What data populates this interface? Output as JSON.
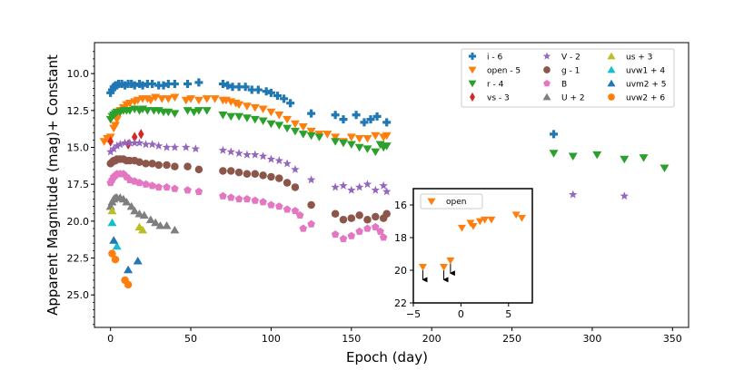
{
  "chart_data": [
    {
      "type": "scatter",
      "title": "",
      "xlabel": "Epoch (day)",
      "ylabel": "Apparent Magnitude (mag)+ Constant",
      "xlim": [
        -10,
        360
      ],
      "ylim": [
        27.2,
        7.9
      ],
      "y_inverted": true,
      "x_ticks": [
        0,
        50,
        100,
        150,
        200,
        250,
        300,
        350
      ],
      "y_ticks": [
        10.0,
        12.5,
        15.0,
        17.5,
        20.0,
        22.5,
        25.0
      ],
      "x_tick_labels": [
        "0",
        "50",
        "100",
        "150",
        "200",
        "250",
        "300",
        "350"
      ],
      "y_tick_labels": [
        "10.0",
        "12.5",
        "15.0",
        "17.5",
        "20.0",
        "22.5",
        "25.0"
      ],
      "legend_position": "top-right",
      "series": [
        {
          "name": "i - 6",
          "marker": "plus",
          "color": "#1f77b4",
          "x": [
            0,
            1,
            2,
            3,
            4,
            5,
            7,
            9,
            11,
            13,
            15,
            18,
            20,
            23,
            26,
            30,
            33,
            36,
            40,
            48,
            55,
            70,
            73,
            76,
            80,
            84,
            88,
            92,
            97,
            100,
            104,
            108,
            112,
            125,
            140,
            145,
            153,
            158,
            162,
            166,
            172,
            276
          ],
          "y": [
            11.3,
            11.1,
            10.9,
            10.8,
            10.8,
            10.7,
            10.7,
            10.8,
            10.7,
            10.7,
            10.8,
            10.7,
            10.8,
            10.7,
            10.7,
            10.8,
            10.8,
            10.7,
            10.7,
            10.7,
            10.6,
            10.7,
            10.8,
            10.9,
            10.9,
            10.9,
            11.1,
            11.1,
            11.2,
            11.3,
            11.5,
            11.7,
            12.0,
            12.7,
            12.8,
            13.1,
            12.8,
            13.3,
            13.1,
            12.9,
            13.3,
            14.1
          ]
        },
        {
          "name": "open - 5",
          "marker": "triangle-down",
          "color": "#ff7f0e",
          "x": [
            -4,
            -2,
            0,
            2,
            3,
            4,
            5,
            6,
            8,
            10,
            12,
            15,
            17,
            20,
            23,
            25,
            28,
            32,
            36,
            40,
            47,
            50,
            55,
            60,
            65,
            70,
            72,
            75,
            78,
            80,
            85,
            90,
            95,
            100,
            105,
            110,
            115,
            120,
            125,
            130,
            135,
            140,
            145,
            150,
            155,
            160,
            165,
            170,
            172
          ],
          "y": [
            14.6,
            14.4,
            14.3,
            13.7,
            13.5,
            13.1,
            12.8,
            12.5,
            12.3,
            12.1,
            12.0,
            11.9,
            11.8,
            11.7,
            11.7,
            11.8,
            11.6,
            11.7,
            11.7,
            11.6,
            11.8,
            11.7,
            11.8,
            11.7,
            11.7,
            11.8,
            11.8,
            11.9,
            12.0,
            12.1,
            12.2,
            12.3,
            12.4,
            12.6,
            12.8,
            13.1,
            13.4,
            13.6,
            13.9,
            14.1,
            14.1,
            14.3,
            14.6,
            14.3,
            14.4,
            14.4,
            14.2,
            14.3,
            14.2
          ]
        },
        {
          "name": "r - 4",
          "marker": "triangle-down",
          "color": "#2ca02c",
          "x": [
            0,
            1,
            2,
            3,
            4,
            6,
            8,
            10,
            12,
            15,
            18,
            20,
            23,
            27,
            30,
            33,
            36,
            40,
            48,
            52,
            55,
            60,
            70,
            75,
            80,
            85,
            90,
            95,
            100,
            105,
            110,
            115,
            120,
            125,
            130,
            140,
            145,
            150,
            155,
            160,
            165,
            168,
            170,
            172,
            276,
            288,
            303,
            320,
            332,
            345
          ],
          "y": [
            13.1,
            12.9,
            12.8,
            12.7,
            12.6,
            12.6,
            12.5,
            12.5,
            12.5,
            12.4,
            12.5,
            12.4,
            12.5,
            12.5,
            12.5,
            12.6,
            12.6,
            12.7,
            12.5,
            12.6,
            12.5,
            12.5,
            12.8,
            12.9,
            12.9,
            13.0,
            13.1,
            13.2,
            13.4,
            13.5,
            13.7,
            13.9,
            14.1,
            14.2,
            14.3,
            14.6,
            14.7,
            14.8,
            15.0,
            15.1,
            15.3,
            14.8,
            15.0,
            14.9,
            15.4,
            15.6,
            15.5,
            15.8,
            15.7,
            16.4
          ]
        },
        {
          "name": "vs - 3",
          "marker": "diamond",
          "color": "#d62728",
          "x": [
            0,
            11,
            15,
            19
          ],
          "y": [
            14.6,
            14.8,
            14.3,
            14.1
          ]
        },
        {
          "name": "V - 2",
          "marker": "star",
          "color": "#9467bd",
          "x": [
            0,
            2,
            4,
            6,
            9,
            12,
            15,
            18,
            22,
            26,
            30,
            35,
            40,
            47,
            53,
            70,
            75,
            80,
            85,
            90,
            95,
            100,
            105,
            110,
            115,
            125,
            140,
            145,
            150,
            155,
            160,
            165,
            170,
            172,
            288,
            320
          ],
          "y": [
            15.3,
            15.1,
            14.9,
            14.8,
            14.7,
            14.7,
            14.7,
            14.7,
            14.8,
            14.8,
            14.9,
            15.0,
            15.0,
            15.0,
            15.1,
            15.2,
            15.3,
            15.4,
            15.5,
            15.5,
            15.6,
            15.8,
            15.9,
            16.1,
            16.5,
            17.2,
            17.7,
            17.6,
            17.9,
            17.7,
            17.5,
            17.9,
            17.6,
            18.0,
            18.2,
            18.3
          ]
        },
        {
          "name": "g - 1",
          "marker": "circle",
          "color": "#8c564b",
          "x": [
            0,
            1,
            2,
            3,
            4,
            6,
            8,
            10,
            12,
            15,
            18,
            22,
            26,
            30,
            35,
            40,
            48,
            55,
            70,
            75,
            80,
            85,
            90,
            95,
            100,
            105,
            110,
            115,
            125,
            140,
            145,
            150,
            155,
            160,
            165,
            170,
            172
          ],
          "y": [
            16.1,
            16.0,
            15.9,
            15.9,
            15.8,
            15.8,
            15.8,
            15.9,
            15.9,
            15.9,
            16.0,
            16.1,
            16.1,
            16.2,
            16.2,
            16.3,
            16.3,
            16.5,
            16.6,
            16.6,
            16.7,
            16.8,
            16.8,
            16.9,
            17.0,
            17.1,
            17.4,
            17.7,
            18.9,
            19.5,
            19.9,
            19.8,
            19.6,
            19.9,
            19.7,
            19.8,
            19.5
          ]
        },
        {
          "name": "B",
          "marker": "pentagon",
          "color": "#e377c2",
          "x": [
            0,
            1,
            2,
            3,
            4,
            6,
            8,
            10,
            12,
            15,
            18,
            22,
            26,
            30,
            35,
            40,
            48,
            55,
            70,
            75,
            80,
            85,
            90,
            95,
            100,
            105,
            110,
            115,
            118,
            120,
            125,
            140,
            145,
            150,
            155,
            160,
            165,
            168,
            170
          ],
          "y": [
            17.4,
            17.2,
            17.0,
            16.9,
            16.8,
            16.8,
            16.8,
            17.0,
            17.2,
            17.3,
            17.4,
            17.5,
            17.6,
            17.7,
            17.7,
            17.8,
            17.9,
            18.0,
            18.3,
            18.4,
            18.5,
            18.5,
            18.6,
            18.7,
            18.9,
            19.0,
            19.2,
            19.3,
            19.6,
            20.5,
            20.2,
            20.9,
            21.2,
            21.0,
            20.7,
            20.5,
            20.4,
            20.7,
            21.1
          ]
        },
        {
          "name": "U + 2",
          "marker": "triangle-up",
          "color": "#7f7f7f",
          "x": [
            0,
            1,
            2,
            3,
            4,
            6,
            8,
            10,
            13,
            15,
            18,
            21,
            25,
            28,
            31,
            35,
            40
          ],
          "y": [
            19.0,
            18.7,
            18.5,
            18.4,
            18.4,
            18.4,
            18.5,
            18.7,
            19.0,
            19.3,
            19.5,
            19.6,
            19.9,
            20.1,
            20.3,
            20.3,
            20.6
          ]
        },
        {
          "name": "us + 3",
          "marker": "triangle-up",
          "color": "#bcbd22",
          "x": [
            1,
            18,
            20
          ],
          "y": [
            19.3,
            20.4,
            20.6
          ]
        },
        {
          "name": "uvw1 + 4",
          "marker": "triangle-up",
          "color": "#17becf",
          "x": [
            1,
            4
          ],
          "y": [
            20.1,
            21.7
          ]
        },
        {
          "name": "uvm2 + 5",
          "marker": "triangle-up",
          "color": "#1f77b4",
          "x": [
            2,
            11,
            17
          ],
          "y": [
            21.3,
            23.3,
            22.7
          ]
        },
        {
          "name": "uvw2 + 6",
          "marker": "circle",
          "color": "#ff7f0e",
          "x": [
            1,
            3,
            9,
            11
          ],
          "y": [
            22.2,
            22.6,
            24.0,
            24.3
          ]
        }
      ]
    },
    {
      "type": "scatter",
      "title": "",
      "xlabel": "",
      "ylabel": "",
      "xlim": [
        -5,
        7.5
      ],
      "ylim": [
        22,
        15
      ],
      "y_inverted": true,
      "x_ticks": [
        -5,
        0,
        5
      ],
      "y_ticks": [
        16,
        18,
        20,
        22
      ],
      "x_tick_labels": [
        "−5",
        "0",
        "5"
      ],
      "y_tick_labels": [
        "16",
        "18",
        "20",
        "22"
      ],
      "legend_position": "top-left",
      "series": [
        {
          "name": "open",
          "marker": "triangle-down",
          "color": "#ff7f0e",
          "x": [
            -4.0,
            -1.8,
            -1.1,
            0.1,
            1.0,
            1.3,
            2.0,
            2.5,
            3.2,
            5.8,
            6.4
          ],
          "y": [
            19.8,
            19.8,
            19.4,
            17.4,
            17.1,
            17.3,
            17.0,
            16.9,
            16.9,
            16.6,
            16.8
          ],
          "upper_limit": [
            true,
            true,
            true,
            false,
            false,
            false,
            false,
            false,
            false,
            false,
            false
          ]
        }
      ]
    }
  ]
}
